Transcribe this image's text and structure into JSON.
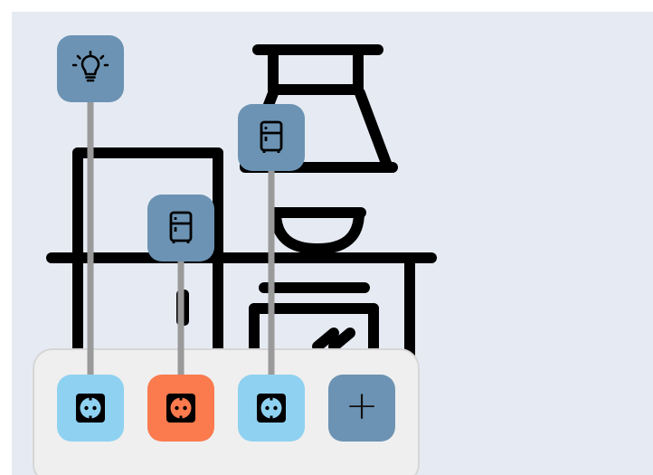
{
  "colors": {
    "background": "#e6ebf3",
    "device_tile": "#6c93b3",
    "socket_default": "#8fd1f1",
    "socket_active": "#fb7a4e",
    "add_tile": "#6c93b3",
    "cable": "#9a9a9a"
  },
  "scene": {
    "illustration": "kitchen-line-art"
  },
  "devices": [
    {
      "name": "light-bulb",
      "icon": "light-bulb-icon"
    },
    {
      "name": "fridge-1",
      "icon": "fridge-icon"
    },
    {
      "name": "fridge-2",
      "icon": "fridge-icon"
    }
  ],
  "sockets": [
    {
      "icon": "power-socket-icon",
      "state": "connected"
    },
    {
      "icon": "power-socket-icon",
      "state": "active"
    },
    {
      "icon": "power-socket-icon",
      "state": "connected"
    }
  ],
  "add_button": {
    "label": "+",
    "icon": "plus-icon"
  }
}
